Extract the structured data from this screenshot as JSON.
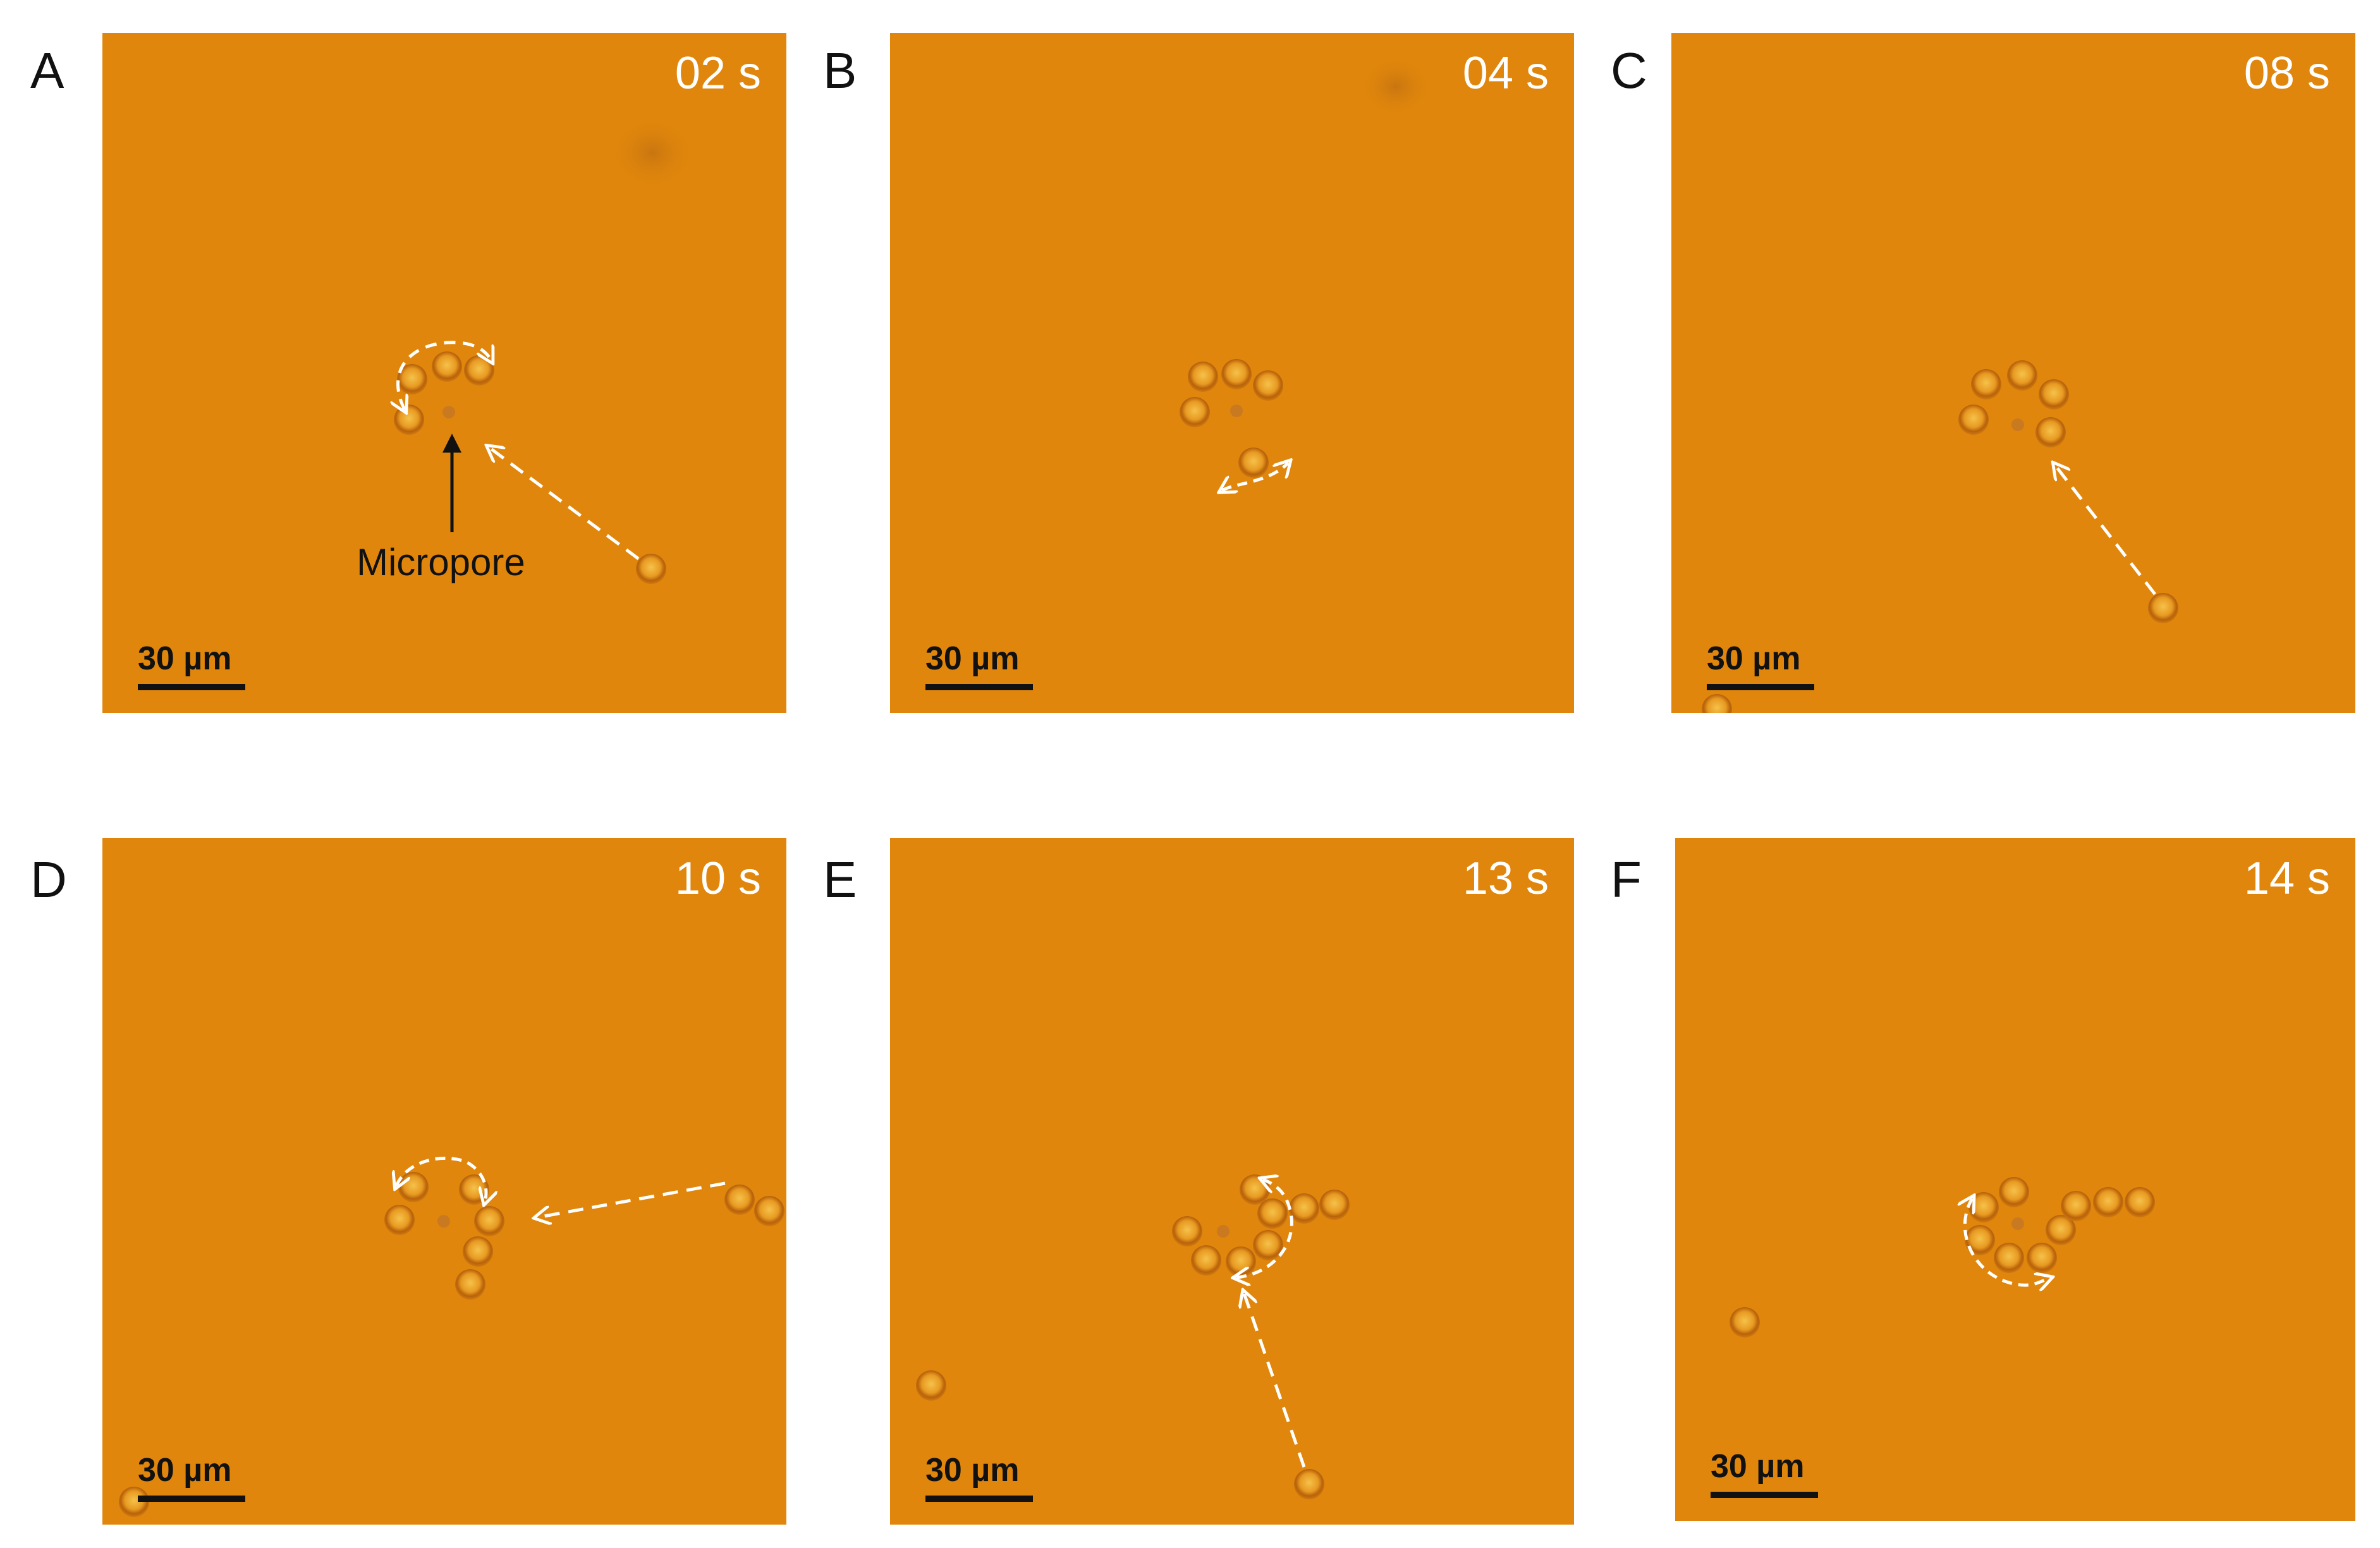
{
  "figure": {
    "panels": [
      {
        "letter": "A",
        "time": "02 s",
        "scale": "30 µm",
        "annotation": "Micropore"
      },
      {
        "letter": "B",
        "time": "04 s",
        "scale": "30 µm"
      },
      {
        "letter": "C",
        "time": "08 s",
        "scale": "30 µm"
      },
      {
        "letter": "D",
        "time": "10 s",
        "scale": "30 µm"
      },
      {
        "letter": "E",
        "time": "13 s",
        "scale": "30 µm"
      },
      {
        "letter": "F",
        "time": "14 s",
        "scale": "30 µm"
      }
    ]
  },
  "colors": {
    "background": "#e0860c",
    "particle": "#f2b23a",
    "particle_rim": "#a2530a",
    "arrow": "#ffffff",
    "label": "#111111"
  }
}
